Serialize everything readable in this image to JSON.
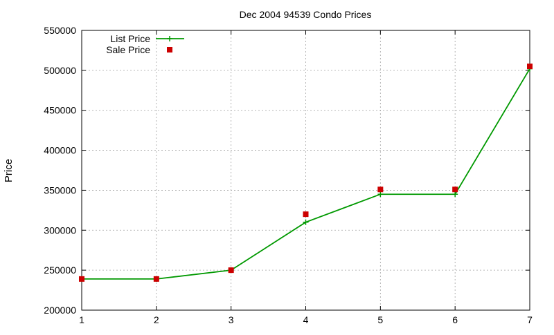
{
  "chart_data": {
    "type": "line",
    "title": "Dec 2004 94539 Condo Prices",
    "xlabel": "",
    "ylabel": "Price",
    "x": [
      1,
      2,
      3,
      4,
      5,
      6,
      7
    ],
    "xlim": [
      1,
      7
    ],
    "ylim": [
      200000,
      550000
    ],
    "xticks": [
      1,
      2,
      3,
      4,
      5,
      6,
      7
    ],
    "yticks": [
      200000,
      250000,
      300000,
      350000,
      400000,
      450000,
      500000,
      550000
    ],
    "grid": true,
    "legend_position": "top-left",
    "series": [
      {
        "name": "List Price",
        "style": "line-with-plus-markers",
        "color": "#009900",
        "values": [
          239000,
          239000,
          250000,
          310000,
          345000,
          345000,
          502000
        ]
      },
      {
        "name": "Sale Price",
        "style": "square-markers",
        "color": "#cc0000",
        "values": [
          239000,
          239000,
          250000,
          320000,
          351000,
          351000,
          505000
        ]
      }
    ]
  }
}
